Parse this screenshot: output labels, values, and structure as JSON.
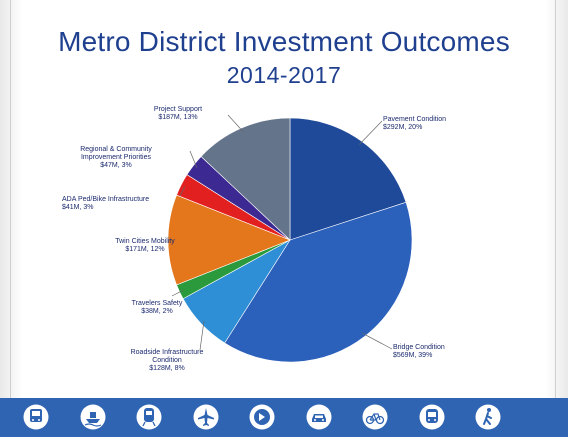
{
  "chart_data": {
    "type": "pie",
    "title": "Metro District Investment Outcomes",
    "subtitle": "2014-2017",
    "slices": [
      {
        "name": "Pavement Condition",
        "value_label": "$292M, 20%",
        "value": 20,
        "color": "#1f4a99"
      },
      {
        "name": "Bridge Condition",
        "value_label": "$569M, 39%",
        "value": 39,
        "color": "#2b60bb"
      },
      {
        "name": "Roadside Infrastructure Condition",
        "value_label": "$128M, 8%",
        "value": 8,
        "color": "#2f8fd6"
      },
      {
        "name": "Travelers Safety",
        "value_label": "$38M, 2%",
        "value": 2,
        "color": "#2a9a3c"
      },
      {
        "name": "Twin Cities Mobility",
        "value_label": "$171M, 12%",
        "value": 12,
        "color": "#e4771b"
      },
      {
        "name": "ADA Ped/Bike Infrastructure",
        "value_label": "$41M, 3%",
        "value": 3,
        "color": "#e22020"
      },
      {
        "name": "Regional & Community Improvement Priorities",
        "value_label": "$47M, 3%",
        "value": 3,
        "color": "#3c2a92"
      },
      {
        "name": "Project Support",
        "value_label": "$187M, 13%",
        "value": 13,
        "color": "#64748b"
      }
    ]
  },
  "labels": [
    {
      "lines": [
        "Pavement Condition",
        "$292M, 20%"
      ]
    },
    {
      "lines": [
        "Bridge Condition",
        "$569M, 39%"
      ]
    },
    {
      "lines": [
        "Roadside Infrastructure",
        "Condition",
        "$128M, 8%"
      ]
    },
    {
      "lines": [
        "Travelers Safety",
        "$38M, 2%"
      ]
    },
    {
      "lines": [
        "Twin Cities Mobility",
        "$171M, 12%"
      ]
    },
    {
      "lines": [
        "ADA Ped/Bike Infrastructure",
        "$41M, 3%"
      ]
    },
    {
      "lines": [
        "Regional & Community",
        "Improvement Priorities",
        "$47M, 3%"
      ]
    },
    {
      "lines": [
        "Project Support",
        "$187M, 13%"
      ]
    }
  ],
  "footer": {
    "bar_color": "#2f64b3",
    "icons": [
      "bus-icon",
      "ship-icon",
      "train-icon",
      "airplane-icon",
      "mndot-logo-icon",
      "car-icon",
      "bicycle-icon",
      "bus-front-icon",
      "walking-icon"
    ]
  }
}
